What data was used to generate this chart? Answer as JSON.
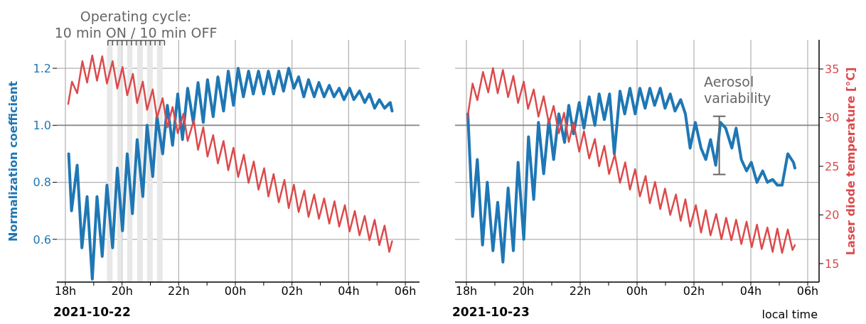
{
  "chart_data": [
    {
      "type": "line",
      "xlabel": "2021-10-22",
      "ylabel": "Normalization coefficient",
      "annotations": [
        "Operating cycle:\n10 min ON / 10 min OFF"
      ],
      "xlim": [
        "2021-10-22T17:42",
        "2021-10-23T06:30"
      ],
      "xticks": [
        {
          "value": "2021-10-22T18:00",
          "label": "18h"
        },
        {
          "value": "2021-10-22T19:00",
          "label": null
        },
        {
          "value": "2021-10-22T20:00",
          "label": "20h"
        },
        {
          "value": "2021-10-22T21:00",
          "label": null
        },
        {
          "value": "2021-10-22T22:00",
          "label": "22h"
        },
        {
          "value": "2021-10-22T23:00",
          "label": null
        },
        {
          "value": "2021-10-23T00:00",
          "label": "00h"
        },
        {
          "value": "2021-10-23T01:00",
          "label": null
        },
        {
          "value": "2021-10-23T02:00",
          "label": "02h"
        },
        {
          "value": "2021-10-23T03:00",
          "label": null
        },
        {
          "value": "2021-10-23T04:00",
          "label": "04h"
        },
        {
          "value": "2021-10-23T05:00",
          "label": null
        },
        {
          "value": "2021-10-23T06:00",
          "label": "06h"
        }
      ],
      "ylim": [
        0.45,
        1.3
      ],
      "yticks": [
        0.6,
        0.8,
        {
          "value": 1,
          "label": "1.0"
        },
        1.2
      ],
      "y2lim": [
        13.1,
        38
      ],
      "grid": true,
      "tick_labels": "xy",
      "line_style": "solid",
      "ref_lines": [
        {
          "axis": "y",
          "value": 1,
          "label": null,
          "color": "#888888"
        }
      ],
      "bands": [
        {
          "axis": "x",
          "from": "2021-10-22T19:28",
          "to": "2021-10-22T19:40",
          "label": null,
          "color": "#e8e8e8"
        },
        {
          "axis": "x",
          "from": "2021-10-22T19:50",
          "to": "2021-10-22T20:00",
          "label": null,
          "color": "#e8e8e8"
        },
        {
          "axis": "x",
          "from": "2021-10-22T20:11",
          "to": "2021-10-22T20:22",
          "label": null,
          "color": "#e8e8e8"
        },
        {
          "axis": "x",
          "from": "2021-10-22T20:32",
          "to": "2021-10-22T20:44",
          "label": null,
          "color": "#e8e8e8"
        },
        {
          "axis": "x",
          "from": "2021-10-22T20:53",
          "to": "2021-10-22T21:05",
          "label": null,
          "color": "#e8e8e8"
        },
        {
          "axis": "x",
          "from": "2021-10-22T21:14",
          "to": "2021-10-22T21:26",
          "label": null,
          "color": "#e8e8e8"
        }
      ],
      "series": [
        {
          "color": "#1f77b4",
          "axis": "y",
          "x": [
            "2021-10-22T18:07",
            "2021-10-22T18:13",
            "2021-10-22T18:25",
            "2021-10-22T18:35",
            "2021-10-22T18:46",
            "2021-10-22T18:57",
            "2021-10-22T19:07",
            "2021-10-22T19:18",
            "2021-10-22T19:28",
            "2021-10-22T19:40",
            "2021-10-22T19:50",
            "2021-10-22T20:01",
            "2021-10-22T20:11",
            "2021-10-22T20:22",
            "2021-10-22T20:32",
            "2021-10-22T20:44",
            "2021-10-22T20:53",
            "2021-10-22T21:05",
            "2021-10-22T21:14",
            "2021-10-22T21:26",
            "2021-10-22T21:36",
            "2021-10-22T21:47",
            "2021-10-22T21:58",
            "2021-10-22T22:08",
            "2021-10-22T22:19",
            "2021-10-22T22:31",
            "2021-10-22T22:41",
            "2021-10-22T22:52",
            "2021-10-22T23:01",
            "2021-10-22T23:13",
            "2021-10-22T23:23",
            "2021-10-22T23:35",
            "2021-10-22T23:45",
            "2021-10-22T23:56",
            "2021-10-23T00:06",
            "2021-10-23T00:17",
            "2021-10-23T00:28",
            "2021-10-23T00:38",
            "2021-10-23T00:49",
            "2021-10-23T01:00",
            "2021-10-23T01:10",
            "2021-10-23T01:21",
            "2021-10-23T01:32",
            "2021-10-23T01:42",
            "2021-10-23T01:53",
            "2021-10-23T02:04",
            "2021-10-23T02:14",
            "2021-10-23T02:25",
            "2021-10-23T02:35",
            "2021-10-23T02:47",
            "2021-10-23T02:57",
            "2021-10-23T03:08",
            "2021-10-23T03:19",
            "2021-10-23T03:29",
            "2021-10-23T03:40",
            "2021-10-23T03:50",
            "2021-10-23T04:02",
            "2021-10-23T04:11",
            "2021-10-23T04:23",
            "2021-10-23T04:34",
            "2021-10-23T04:44",
            "2021-10-23T04:55",
            "2021-10-23T05:05",
            "2021-10-23T05:16",
            "2021-10-23T05:28",
            "2021-10-23T05:32"
          ],
          "values": [
            0.9,
            0.7,
            0.86,
            0.57,
            0.75,
            0.46,
            0.75,
            0.54,
            0.79,
            0.57,
            0.85,
            0.63,
            0.9,
            0.69,
            0.95,
            0.75,
            1.0,
            0.82,
            1.03,
            0.9,
            1.07,
            0.93,
            1.11,
            0.95,
            1.13,
            1.01,
            1.15,
            1.01,
            1.16,
            1.03,
            1.17,
            1.05,
            1.19,
            1.07,
            1.2,
            1.1,
            1.19,
            1.11,
            1.19,
            1.11,
            1.19,
            1.11,
            1.19,
            1.12,
            1.2,
            1.13,
            1.17,
            1.1,
            1.16,
            1.1,
            1.15,
            1.1,
            1.14,
            1.1,
            1.13,
            1.09,
            1.13,
            1.09,
            1.12,
            1.08,
            1.11,
            1.06,
            1.09,
            1.06,
            1.08,
            1.05
          ]
        },
        {
          "color": "#dc4a4b",
          "axis": "y2",
          "x": [
            "2021-10-22T18:06",
            "2021-10-22T18:14",
            "2021-10-22T18:25",
            "2021-10-22T18:36",
            "2021-10-22T18:46",
            "2021-10-22T18:57",
            "2021-10-22T19:07",
            "2021-10-22T19:18",
            "2021-10-22T19:28",
            "2021-10-22T19:40",
            "2021-10-22T19:50",
            "2021-10-22T20:01",
            "2021-10-22T20:11",
            "2021-10-22T20:23",
            "2021-10-22T20:32",
            "2021-10-22T20:44",
            "2021-10-22T20:53",
            "2021-10-22T21:05",
            "2021-10-22T21:14",
            "2021-10-22T21:26",
            "2021-10-22T21:36",
            "2021-10-22T21:47",
            "2021-10-22T21:58",
            "2021-10-22T22:10",
            "2021-10-22T22:19",
            "2021-10-22T22:32",
            "2021-10-22T22:41",
            "2021-10-22T22:52",
            "2021-10-22T23:01",
            "2021-10-22T23:13",
            "2021-10-22T23:23",
            "2021-10-22T23:35",
            "2021-10-22T23:45",
            "2021-10-22T23:56",
            "2021-10-23T00:06",
            "2021-10-23T00:18",
            "2021-10-23T00:28",
            "2021-10-23T00:39",
            "2021-10-23T00:49",
            "2021-10-23T01:01",
            "2021-10-23T01:10",
            "2021-10-23T01:21",
            "2021-10-23T01:32",
            "2021-10-23T01:44",
            "2021-10-23T01:53",
            "2021-10-23T02:04",
            "2021-10-23T02:14",
            "2021-10-23T02:26",
            "2021-10-23T02:35",
            "2021-10-23T02:47",
            "2021-10-23T02:57",
            "2021-10-23T03:08",
            "2021-10-23T03:19",
            "2021-10-23T03:30",
            "2021-10-23T03:40",
            "2021-10-23T03:52",
            "2021-10-23T04:02",
            "2021-10-23T04:13",
            "2021-10-23T04:23",
            "2021-10-23T04:34",
            "2021-10-23T04:44",
            "2021-10-23T04:55",
            "2021-10-23T05:05",
            "2021-10-23T05:16",
            "2021-10-23T05:26",
            "2021-10-23T05:32"
          ],
          "values": [
            31.4,
            33.7,
            32.5,
            35.8,
            33.6,
            36.4,
            33.8,
            36.3,
            33.5,
            35.8,
            33.0,
            35.2,
            32.3,
            34.5,
            31.5,
            33.7,
            30.8,
            32.9,
            30.0,
            32.0,
            29.0,
            31.1,
            28.4,
            30.4,
            27.6,
            29.7,
            26.7,
            29.0,
            26.0,
            28.2,
            25.3,
            27.6,
            24.6,
            26.9,
            23.9,
            26.2,
            23.3,
            25.5,
            22.6,
            24.8,
            21.9,
            24.2,
            21.3,
            23.6,
            20.7,
            23.1,
            20.3,
            22.5,
            19.8,
            22.1,
            19.6,
            21.7,
            19.1,
            21.4,
            18.8,
            21.0,
            18.3,
            20.4,
            17.9,
            19.9,
            17.4,
            19.5,
            16.9,
            18.9,
            16.2,
            17.3
          ]
        }
      ]
    },
    {
      "type": "line",
      "xlabel": "2021-10-23",
      "y2label": "Laser diode temperature [°C]",
      "annotations": [
        "Aerosol\nvariability",
        "local time"
      ],
      "xlim": [
        "2021-10-23T17:36",
        "2021-10-24T06:24"
      ],
      "xticks": [
        {
          "value": "2021-10-23T18:00",
          "label": "18h"
        },
        {
          "value": "2021-10-23T19:00",
          "label": null
        },
        {
          "value": "2021-10-23T20:00",
          "label": "20h"
        },
        {
          "value": "2021-10-23T21:00",
          "label": null
        },
        {
          "value": "2021-10-23T22:00",
          "label": "22h"
        },
        {
          "value": "2021-10-23T23:00",
          "label": null
        },
        {
          "value": "2021-10-24T00:00",
          "label": "00h"
        },
        {
          "value": "2021-10-24T01:00",
          "label": null
        },
        {
          "value": "2021-10-24T02:00",
          "label": "02h"
        },
        {
          "value": "2021-10-24T03:00",
          "label": null
        },
        {
          "value": "2021-10-24T04:00",
          "label": "04h"
        },
        {
          "value": "2021-10-24T05:00",
          "label": null
        },
        {
          "value": "2021-10-24T06:00",
          "label": "06h"
        }
      ],
      "ylim": [
        0.45,
        1.3
      ],
      "y2lim": [
        13.1,
        38
      ],
      "y2ticks": [
        15,
        20,
        25,
        30,
        35
      ],
      "grid": true,
      "tick_labels": "xy2",
      "line_style": "solid",
      "ref_lines": [
        {
          "axis": "y",
          "value": 1,
          "label": null,
          "color": "#888888"
        }
      ],
      "series": [
        {
          "color": "#1f77b4",
          "axis": "y",
          "x": [
            "2021-10-23T18:03",
            "2021-10-23T18:13",
            "2021-10-23T18:23",
            "2021-10-23T18:34",
            "2021-10-23T18:44",
            "2021-10-23T18:56",
            "2021-10-23T19:06",
            "2021-10-23T19:17",
            "2021-10-23T19:28",
            "2021-10-23T19:39",
            "2021-10-23T19:49",
            "2021-10-23T20:01",
            "2021-10-23T20:11",
            "2021-10-23T20:22",
            "2021-10-23T20:32",
            "2021-10-23T20:43",
            "2021-10-23T20:54",
            "2021-10-23T21:04",
            "2021-10-23T21:15",
            "2021-10-23T21:27",
            "2021-10-23T21:36",
            "2021-10-23T21:46",
            "2021-10-23T21:58",
            "2021-10-23T22:08",
            "2021-10-23T22:19",
            "2021-10-23T22:31",
            "2021-10-23T22:40",
            "2021-10-23T22:51",
            "2021-10-23T23:02",
            "2021-10-23T23:12",
            "2021-10-23T23:24",
            "2021-10-23T23:34",
            "2021-10-23T23:45",
            "2021-10-23T23:56",
            "2021-10-24T00:06",
            "2021-10-24T00:17",
            "2021-10-24T00:27",
            "2021-10-24T00:37",
            "2021-10-24T00:49",
            "2021-10-24T00:59",
            "2021-10-24T01:10",
            "2021-10-24T01:20",
            "2021-10-24T01:32",
            "2021-10-24T01:42",
            "2021-10-24T01:52",
            "2021-10-24T02:03",
            "2021-10-24T02:15",
            "2021-10-24T02:25",
            "2021-10-24T02:35",
            "2021-10-24T02:46",
            "2021-10-24T02:56",
            "2021-10-24T03:07",
            "2021-10-24T03:20",
            "2021-10-24T03:29",
            "2021-10-24T03:40",
            "2021-10-24T03:51",
            "2021-10-24T04:01",
            "2021-10-24T04:13",
            "2021-10-24T04:25",
            "2021-10-24T04:35",
            "2021-10-24T04:46",
            "2021-10-24T04:56",
            "2021-10-24T05:06",
            "2021-10-24T05:18",
            "2021-10-24T05:30",
            "2021-10-24T05:33"
          ],
          "values": [
            1.04,
            0.68,
            0.88,
            0.58,
            0.8,
            0.56,
            0.73,
            0.52,
            0.78,
            0.56,
            0.87,
            0.6,
            0.96,
            0.74,
            1.01,
            0.83,
            1.02,
            0.88,
            1.04,
            0.94,
            1.07,
            0.97,
            1.08,
            0.99,
            1.1,
            1.0,
            1.11,
            1.02,
            1.11,
            0.9,
            1.12,
            1.04,
            1.13,
            1.04,
            1.13,
            1.06,
            1.13,
            1.07,
            1.13,
            1.06,
            1.11,
            1.05,
            1.09,
            1.04,
            0.92,
            1.01,
            0.92,
            0.88,
            0.95,
            0.86,
            1.01,
            0.99,
            0.92,
            0.99,
            0.88,
            0.84,
            0.87,
            0.8,
            0.84,
            0.8,
            0.81,
            0.79,
            0.79,
            0.9,
            0.87,
            0.85
          ]
        },
        {
          "color": "#dc4a4b",
          "axis": "y2",
          "x": [
            "2021-10-23T18:02",
            "2021-10-23T18:13",
            "2021-10-23T18:23",
            "2021-10-23T18:35",
            "2021-10-23T18:46",
            "2021-10-23T18:56",
            "2021-10-23T19:06",
            "2021-10-23T19:17",
            "2021-10-23T19:28",
            "2021-10-23T19:39",
            "2021-10-23T19:49",
            "2021-10-23T20:01",
            "2021-10-23T20:10",
            "2021-10-23T20:22",
            "2021-10-23T20:32",
            "2021-10-23T20:43",
            "2021-10-23T20:54",
            "2021-10-23T21:04",
            "2021-10-23T21:15",
            "2021-10-23T21:26",
            "2021-10-23T21:36",
            "2021-10-23T21:46",
            "2021-10-23T21:58",
            "2021-10-23T22:08",
            "2021-10-23T22:19",
            "2021-10-23T22:31",
            "2021-10-23T22:40",
            "2021-10-23T22:51",
            "2021-10-23T23:01",
            "2021-10-23T23:13",
            "2021-10-23T23:24",
            "2021-10-23T23:35",
            "2021-10-23T23:45",
            "2021-10-23T23:56",
            "2021-10-24T00:06",
            "2021-10-24T00:18",
            "2021-10-24T00:27",
            "2021-10-24T00:38",
            "2021-10-24T00:49",
            "2021-10-24T00:59",
            "2021-10-24T01:10",
            "2021-10-24T01:22",
            "2021-10-24T01:32",
            "2021-10-24T01:42",
            "2021-10-24T01:52",
            "2021-10-24T02:04",
            "2021-10-24T02:15",
            "2021-10-24T02:25",
            "2021-10-24T02:35",
            "2021-10-24T02:47",
            "2021-10-24T02:58",
            "2021-10-24T03:08",
            "2021-10-24T03:19",
            "2021-10-24T03:29",
            "2021-10-24T03:40",
            "2021-10-24T03:51",
            "2021-10-24T04:02",
            "2021-10-24T04:13",
            "2021-10-24T04:23",
            "2021-10-24T04:35",
            "2021-10-24T04:46",
            "2021-10-24T04:56",
            "2021-10-24T05:06",
            "2021-10-24T05:18",
            "2021-10-24T05:28",
            "2021-10-24T05:33"
          ],
          "values": [
            29.9,
            33.5,
            31.8,
            34.7,
            32.6,
            35.1,
            32.5,
            34.9,
            32.1,
            34.3,
            31.5,
            33.7,
            30.9,
            32.9,
            30.1,
            32.2,
            29.4,
            31.2,
            28.4,
            30.5,
            27.5,
            29.5,
            26.5,
            28.6,
            25.8,
            27.8,
            25.0,
            27.1,
            24.2,
            26.2,
            23.3,
            25.4,
            22.6,
            24.7,
            21.9,
            24.0,
            21.2,
            23.4,
            20.6,
            22.7,
            20.0,
            22.1,
            19.4,
            21.6,
            18.8,
            21.0,
            18.2,
            20.5,
            17.9,
            20.1,
            17.5,
            19.7,
            17.4,
            19.5,
            17.0,
            19.3,
            16.7,
            19.0,
            16.5,
            18.7,
            16.2,
            18.6,
            16.1,
            18.5,
            16.4,
            16.9
          ]
        }
      ]
    }
  ]
}
